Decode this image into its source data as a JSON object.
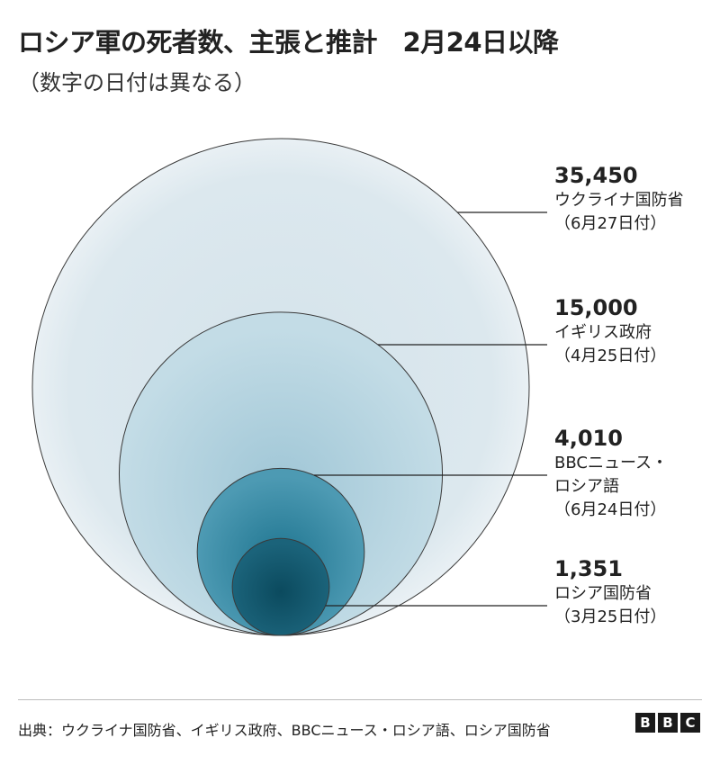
{
  "header": {
    "title": "ロシア軍の死者数、主張と推計　2月24日以降",
    "subtitle": "（数字の日付は異なる）"
  },
  "chart_data": {
    "type": "bubble",
    "encoding": "nested circles, area proportional to value",
    "items": [
      {
        "value": 35450,
        "value_label": "35,450",
        "source_lines": [
          "ウクライナ国防省",
          "（6月27日付）"
        ]
      },
      {
        "value": 15000,
        "value_label": "15,000",
        "source_lines": [
          "イギリス政府",
          "（4月25日付）"
        ]
      },
      {
        "value": 4010,
        "value_label": "4,010",
        "source_lines": [
          "BBCニュース・",
          "ロシア語",
          "（6月24日付）"
        ]
      },
      {
        "value": 1351,
        "value_label": "1,351",
        "source_lines": [
          "ロシア国防省",
          "（3月25日付）"
        ]
      }
    ],
    "colors": {
      "outer": "#dfe8ee",
      "inner": "#0b4a5e",
      "stroke": "#3a3a3a"
    }
  },
  "footer": {
    "source": "出典：ウクライナ国防省、イギリス政府、BBCニュース・ロシア語、ロシア国防省",
    "logo_letters": [
      "B",
      "B",
      "C"
    ]
  }
}
